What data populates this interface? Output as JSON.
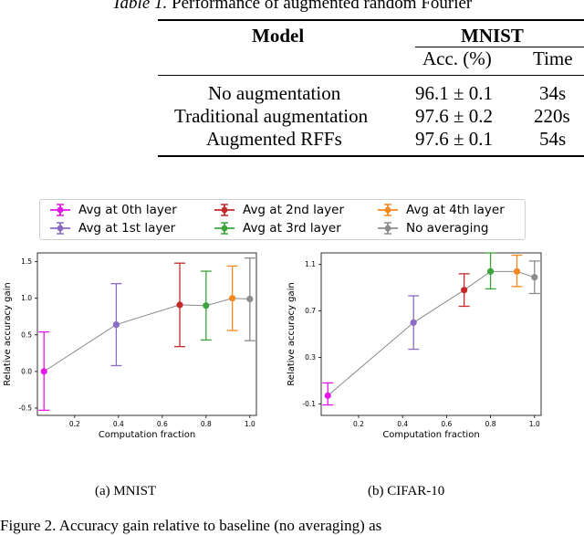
{
  "table": {
    "caption_label": "Table 1.",
    "caption_text": " Performance of augmented random Fourier",
    "group_header": "MNIST",
    "headers": [
      "Model",
      "Acc. (%)",
      "Time"
    ],
    "rows": [
      {
        "model": "No augmentation",
        "acc": "96.1 ± 0.1",
        "time": "34s"
      },
      {
        "model": "Traditional augmentation",
        "acc": "97.6 ± 0.2",
        "time": "220s"
      },
      {
        "model": "Augmented RFFs",
        "acc": "97.6 ± 0.1",
        "time": "54s"
      }
    ]
  },
  "legend": [
    {
      "label": "Avg at 0th layer",
      "color": "#e616e6"
    },
    {
      "label": "Avg at 1st layer",
      "color": "#8c6bc4"
    },
    {
      "label": "Avg at 2nd layer",
      "color": "#c42a2a"
    },
    {
      "label": "Avg at 3rd layer",
      "color": "#3ca43c"
    },
    {
      "label": "Avg at 4th layer",
      "color": "#f5891e"
    },
    {
      "label": "No averaging",
      "color": "#8c8c8c"
    }
  ],
  "chart_data": [
    {
      "type": "line",
      "subcaption": "(a) MNIST",
      "xlabel": "Computation fraction",
      "ylabel": "Relative accuracy gain",
      "xlim": [
        0.03,
        1.03
      ],
      "ylim": [
        -0.6,
        1.62
      ],
      "xticks": [
        0.2,
        0.4,
        0.6,
        0.8,
        1.0
      ],
      "xtick_labels": [
        "0.2",
        "0.4",
        "0.6",
        "0.8",
        "1.0"
      ],
      "yticks": [
        -0.5,
        0.0,
        0.5,
        1.0,
        1.5
      ],
      "ytick_labels": [
        "-0.5",
        "0.0",
        "0.5",
        "1.0",
        "1.5"
      ],
      "points": [
        {
          "x": 0.06,
          "y": 0.0,
          "lo": -0.53,
          "hi": 0.54,
          "color": "#e616e6"
        },
        {
          "x": 0.39,
          "y": 0.64,
          "lo": 0.08,
          "hi": 1.2,
          "color": "#8c6bc4"
        },
        {
          "x": 0.68,
          "y": 0.91,
          "lo": 0.34,
          "hi": 1.48,
          "color": "#c42a2a"
        },
        {
          "x": 0.8,
          "y": 0.9,
          "lo": 0.43,
          "hi": 1.37,
          "color": "#3ca43c"
        },
        {
          "x": 0.92,
          "y": 1.0,
          "lo": 0.56,
          "hi": 1.44,
          "color": "#f5891e"
        },
        {
          "x": 1.0,
          "y": 0.99,
          "lo": 0.42,
          "hi": 1.55,
          "color": "#8c8c8c"
        }
      ]
    },
    {
      "type": "line",
      "subcaption": "(b) CIFAR-10",
      "xlabel": "Computation fraction",
      "ylabel": "Relative accuracy gain",
      "xlim": [
        0.03,
        1.03
      ],
      "ylim": [
        -0.2,
        1.2
      ],
      "xticks": [
        0.2,
        0.4,
        0.6,
        0.8,
        1.0
      ],
      "xtick_labels": [
        "0.2",
        "0.4",
        "0.6",
        "0.8",
        "1.0"
      ],
      "yticks": [
        -0.1,
        0.3,
        0.7,
        1.1
      ],
      "ytick_labels": [
        "-0.1",
        "0.3",
        "0.7",
        "1.1"
      ],
      "points": [
        {
          "x": 0.06,
          "y": -0.03,
          "lo": -0.11,
          "hi": 0.08,
          "color": "#e616e6"
        },
        {
          "x": 0.45,
          "y": 0.6,
          "lo": 0.37,
          "hi": 0.83,
          "color": "#8c6bc4"
        },
        {
          "x": 0.68,
          "y": 0.88,
          "lo": 0.74,
          "hi": 1.02,
          "color": "#c42a2a"
        },
        {
          "x": 0.8,
          "y": 1.04,
          "lo": 0.89,
          "hi": 1.2,
          "color": "#3ca43c"
        },
        {
          "x": 0.92,
          "y": 1.04,
          "lo": 0.91,
          "hi": 1.18,
          "color": "#f5891e"
        },
        {
          "x": 1.0,
          "y": 0.99,
          "lo": 0.85,
          "hi": 1.13,
          "color": "#8c8c8c"
        }
      ]
    }
  ],
  "bottom_text": "Figure 2. Accuracy gain relative to baseline (no averaging) as"
}
